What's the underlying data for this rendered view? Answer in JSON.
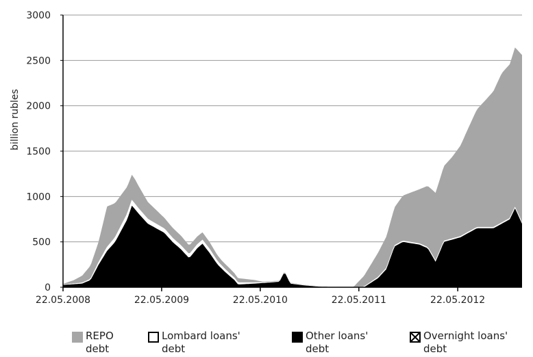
{
  "chart_data": {
    "type": "area",
    "ylabel": "billion rubles",
    "ylim": [
      0,
      3000
    ],
    "yticks": [
      0,
      500,
      1000,
      1500,
      2000,
      2500,
      3000
    ],
    "xlim": [
      "2008-05-22",
      "2013-01-15"
    ],
    "xticks": [
      "22.05.2008",
      "22.05.2009",
      "22.05.2010",
      "22.05.2011",
      "22.05.2012"
    ],
    "grid": "horizontal",
    "stacking": "stacked",
    "legend_position": "bottom",
    "series": [
      {
        "name": "REPO debt",
        "color": "#a6a6a6",
        "points": [
          [
            "2008-05-22",
            10
          ],
          [
            "2008-07-01",
            40
          ],
          [
            "2008-08-01",
            80
          ],
          [
            "2008-09-01",
            150
          ],
          [
            "2008-10-01",
            230
          ],
          [
            "2008-11-01",
            450
          ],
          [
            "2008-12-01",
            380
          ],
          [
            "2009-01-15",
            300
          ],
          [
            "2009-02-15",
            270
          ],
          [
            "2009-04-01",
            190
          ],
          [
            "2009-06-01",
            120
          ],
          [
            "2009-08-01",
            110
          ],
          [
            "2009-10-01",
            90
          ],
          [
            "2009-11-15",
            80
          ],
          [
            "2009-12-31",
            60
          ],
          [
            "2010-01-25",
            60
          ],
          [
            "2010-03-01",
            50
          ],
          [
            "2010-05-01",
            30
          ],
          [
            "2010-06-01",
            10
          ],
          [
            "2011-05-01",
            0
          ],
          [
            "2011-06-10",
            120
          ],
          [
            "2011-08-01",
            270
          ],
          [
            "2011-09-01",
            350
          ],
          [
            "2011-10-01",
            420
          ],
          [
            "2011-11-01",
            500
          ],
          [
            "2012-01-01",
            600
          ],
          [
            "2012-03-01",
            750
          ],
          [
            "2012-05-01",
            900
          ],
          [
            "2012-06-01",
            1000
          ],
          [
            "2012-07-01",
            1150
          ],
          [
            "2012-08-01",
            1300
          ],
          [
            "2012-09-01",
            1400
          ],
          [
            "2012-10-01",
            1500
          ],
          [
            "2012-11-01",
            1650
          ],
          [
            "2012-12-01",
            1700
          ],
          [
            "2013-01-15",
            1850
          ]
        ]
      },
      {
        "name": "Lombard loans' debt",
        "color": "#ffffff",
        "points": [
          [
            "2008-05-22",
            2
          ],
          [
            "2008-09-01",
            10
          ],
          [
            "2008-11-01",
            40
          ],
          [
            "2009-01-15",
            60
          ],
          [
            "2009-04-01",
            50
          ],
          [
            "2009-08-01",
            40
          ],
          [
            "2009-11-15",
            40
          ],
          [
            "2010-01-01",
            30
          ],
          [
            "2010-03-01",
            20
          ],
          [
            "2010-05-01",
            10
          ],
          [
            "2010-06-01",
            5
          ],
          [
            "2011-05-01",
            0
          ],
          [
            "2011-06-10",
            5
          ],
          [
            "2011-08-01",
            10
          ],
          [
            "2011-10-01",
            10
          ],
          [
            "2012-01-01",
            10
          ],
          [
            "2012-06-01",
            10
          ],
          [
            "2012-09-01",
            10
          ],
          [
            "2013-01-15",
            10
          ]
        ]
      },
      {
        "name": "Other loans' debt",
        "color": "#000000",
        "points": [
          [
            "2008-05-22",
            25
          ],
          [
            "2008-08-01",
            40
          ],
          [
            "2008-09-01",
            80
          ],
          [
            "2008-10-01",
            250
          ],
          [
            "2008-11-01",
            400
          ],
          [
            "2008-12-01",
            500
          ],
          [
            "2009-01-15",
            750
          ],
          [
            "2009-02-01",
            900
          ],
          [
            "2009-03-01",
            800
          ],
          [
            "2009-04-01",
            700
          ],
          [
            "2009-06-01",
            600
          ],
          [
            "2009-07-01",
            500
          ],
          [
            "2009-08-01",
            420
          ],
          [
            "2009-09-01",
            320
          ],
          [
            "2009-10-01",
            430
          ],
          [
            "2009-10-20",
            480
          ],
          [
            "2009-11-15",
            380
          ],
          [
            "2009-12-15",
            250
          ],
          [
            "2010-01-15",
            160
          ],
          [
            "2010-02-15",
            80
          ],
          [
            "2010-03-01",
            30
          ],
          [
            "2010-05-01",
            40
          ],
          [
            "2010-08-01",
            60
          ],
          [
            "2010-08-20",
            170
          ],
          [
            "2010-09-10",
            40
          ],
          [
            "2010-11-01",
            20
          ],
          [
            "2011-01-01",
            5
          ],
          [
            "2011-05-01",
            0
          ],
          [
            "2011-06-10",
            0
          ],
          [
            "2011-08-01",
            100
          ],
          [
            "2011-09-01",
            200
          ],
          [
            "2011-10-01",
            450
          ],
          [
            "2011-11-01",
            500
          ],
          [
            "2012-01-01",
            470
          ],
          [
            "2012-02-01",
            430
          ],
          [
            "2012-03-01",
            280
          ],
          [
            "2012-04-01",
            500
          ],
          [
            "2012-06-01",
            550
          ],
          [
            "2012-07-01",
            600
          ],
          [
            "2012-08-01",
            650
          ],
          [
            "2012-10-01",
            650
          ],
          [
            "2012-11-01",
            700
          ],
          [
            "2012-12-01",
            750
          ],
          [
            "2012-12-20",
            870
          ],
          [
            "2013-01-15",
            700
          ]
        ]
      },
      {
        "name": "Overnight loans' debt",
        "color": "#000000",
        "points": []
      }
    ]
  },
  "legend": [
    {
      "label": "REPO\ndebt",
      "swatch": "fill-gray"
    },
    {
      "label": "Lombard loans'\ndebt",
      "swatch": "outline"
    },
    {
      "label": "Other loans'\ndebt",
      "swatch": "fill-black"
    },
    {
      "label": "Overnight loans'\ndebt",
      "swatch": "cross-box"
    }
  ]
}
